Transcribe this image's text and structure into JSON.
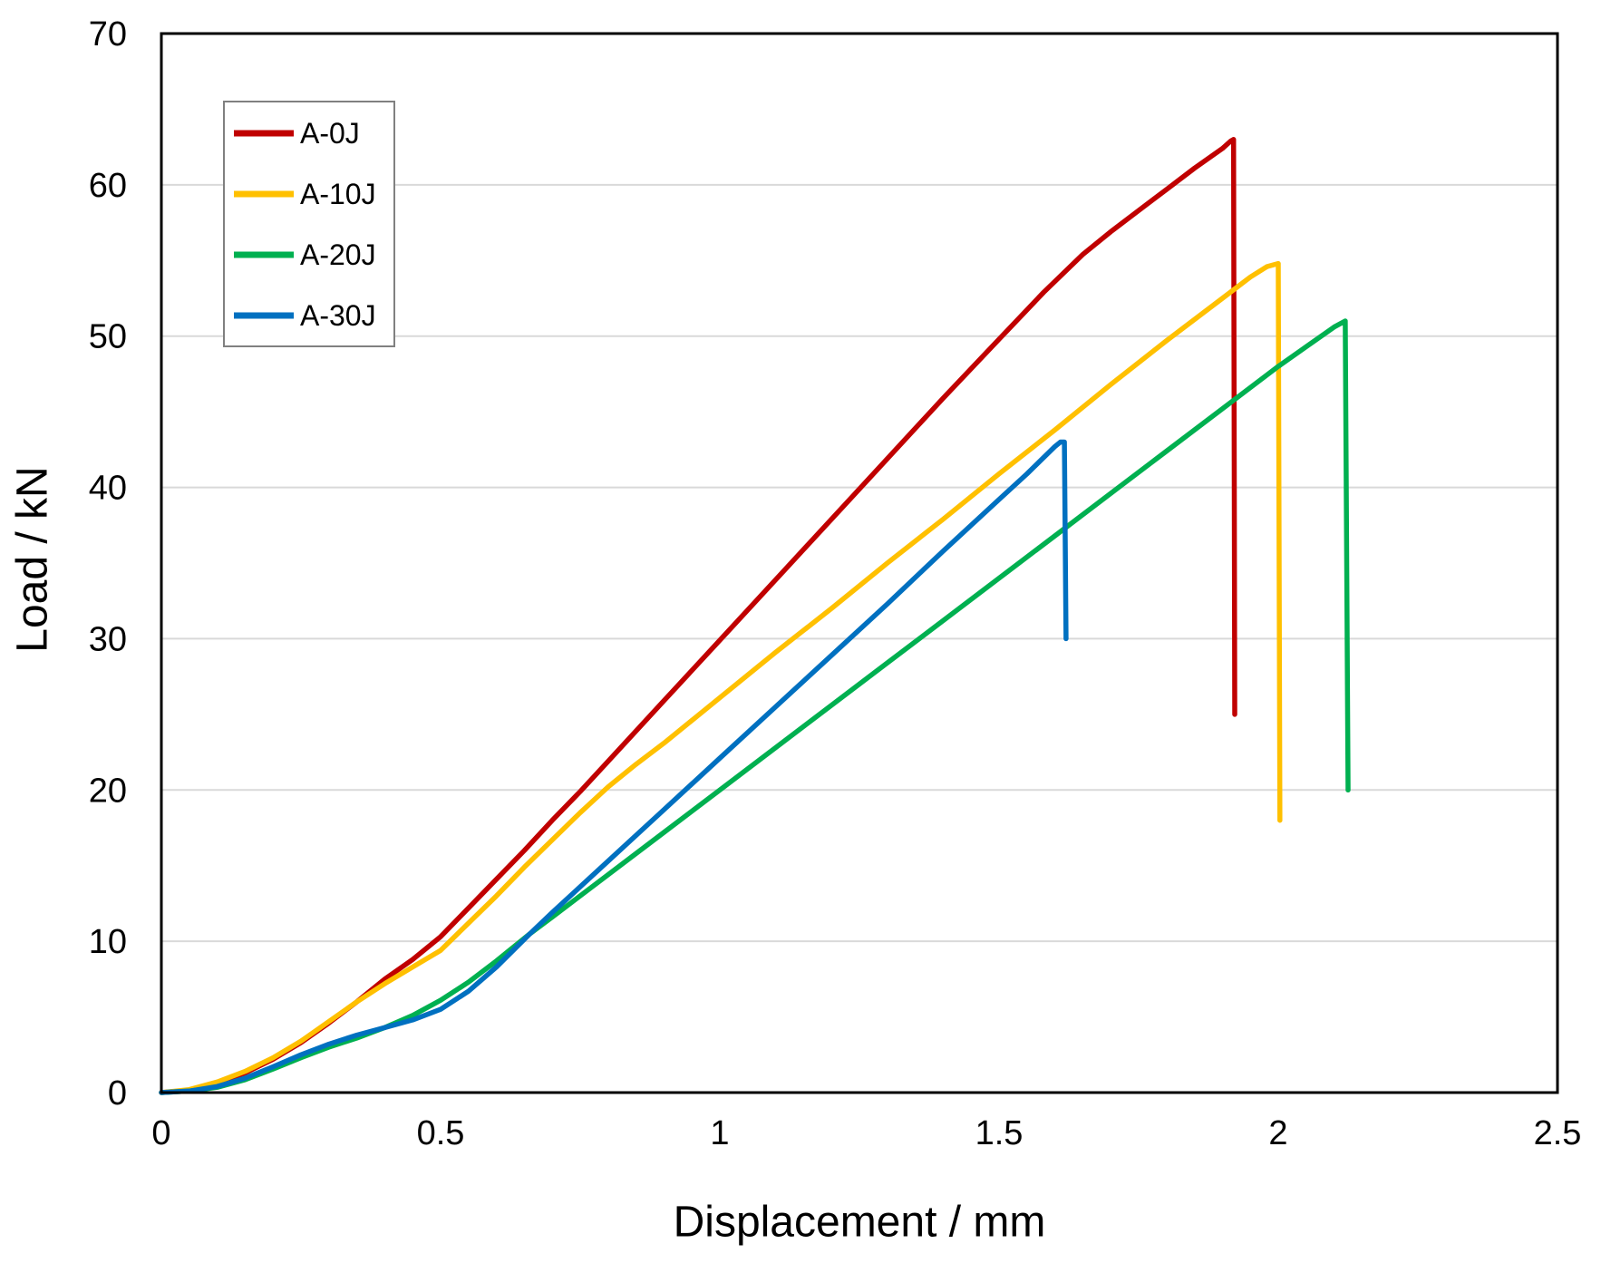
{
  "chart_data": {
    "type": "line",
    "title": "",
    "xlabel": "Displacement / mm",
    "ylabel": "Load / kN",
    "xlim": [
      0,
      2.5
    ],
    "ylim": [
      0,
      70
    ],
    "xticks": {
      "values": [
        0,
        0.5,
        1,
        1.5,
        2,
        2.5
      ],
      "labels": [
        "0",
        "0.5",
        "1",
        "1.5",
        "2",
        "2.5"
      ]
    },
    "yticks": {
      "values": [
        0,
        10,
        20,
        30,
        40,
        50,
        60,
        70
      ],
      "labels": [
        "0",
        "10",
        "20",
        "30",
        "40",
        "50",
        "60",
        "70"
      ]
    },
    "grid": "horizontal-only",
    "plot_border": true,
    "legend": {
      "position": "top-left-inside",
      "entries": [
        "A-0J",
        "A-10J",
        "A-20J",
        "A-30J"
      ]
    },
    "series": [
      {
        "name": "A-0J",
        "color": "#C00000",
        "points": [
          [
            0,
            0
          ],
          [
            0.05,
            0.15
          ],
          [
            0.1,
            0.6
          ],
          [
            0.15,
            1.3
          ],
          [
            0.2,
            2.2
          ],
          [
            0.25,
            3.3
          ],
          [
            0.3,
            4.6
          ],
          [
            0.35,
            6.0
          ],
          [
            0.4,
            7.5
          ],
          [
            0.45,
            8.8
          ],
          [
            0.5,
            10.3
          ],
          [
            0.55,
            12.2
          ],
          [
            0.6,
            14.1
          ],
          [
            0.65,
            16.0
          ],
          [
            0.7,
            18.0
          ],
          [
            0.75,
            19.9
          ],
          [
            0.8,
            21.9
          ],
          [
            0.9,
            25.9
          ],
          [
            1.0,
            29.9
          ],
          [
            1.1,
            33.9
          ],
          [
            1.2,
            37.9
          ],
          [
            1.3,
            41.9
          ],
          [
            1.4,
            45.9
          ],
          [
            1.5,
            49.8
          ],
          [
            1.58,
            52.9
          ],
          [
            1.65,
            55.4
          ],
          [
            1.7,
            56.9
          ],
          [
            1.75,
            58.3
          ],
          [
            1.8,
            59.7
          ],
          [
            1.85,
            61.1
          ],
          [
            1.9,
            62.4
          ],
          [
            1.915,
            62.9
          ],
          [
            1.92,
            63.0
          ],
          [
            1.922,
            25.0
          ]
        ]
      },
      {
        "name": "A-10J",
        "color": "#FFC000",
        "points": [
          [
            0,
            0
          ],
          [
            0.05,
            0.2
          ],
          [
            0.1,
            0.7
          ],
          [
            0.15,
            1.4
          ],
          [
            0.2,
            2.3
          ],
          [
            0.25,
            3.4
          ],
          [
            0.3,
            4.7
          ],
          [
            0.35,
            6.0
          ],
          [
            0.4,
            7.2
          ],
          [
            0.45,
            8.3
          ],
          [
            0.5,
            9.4
          ],
          [
            0.55,
            11.2
          ],
          [
            0.6,
            13.0
          ],
          [
            0.65,
            14.9
          ],
          [
            0.7,
            16.7
          ],
          [
            0.75,
            18.5
          ],
          [
            0.8,
            20.2
          ],
          [
            0.85,
            21.7
          ],
          [
            0.9,
            23.1
          ],
          [
            1.0,
            26.1
          ],
          [
            1.1,
            29.1
          ],
          [
            1.2,
            32.0
          ],
          [
            1.3,
            35.0
          ],
          [
            1.4,
            37.9
          ],
          [
            1.5,
            40.9
          ],
          [
            1.6,
            43.8
          ],
          [
            1.7,
            46.8
          ],
          [
            1.8,
            49.7
          ],
          [
            1.9,
            52.5
          ],
          [
            1.95,
            53.9
          ],
          [
            1.98,
            54.6
          ],
          [
            2.0,
            54.8
          ],
          [
            2.003,
            18.0
          ]
        ]
      },
      {
        "name": "A-20J",
        "color": "#00B050",
        "points": [
          [
            0,
            0
          ],
          [
            0.05,
            0.1
          ],
          [
            0.1,
            0.35
          ],
          [
            0.15,
            0.85
          ],
          [
            0.2,
            1.55
          ],
          [
            0.25,
            2.3
          ],
          [
            0.3,
            3.0
          ],
          [
            0.35,
            3.6
          ],
          [
            0.4,
            4.3
          ],
          [
            0.45,
            5.1
          ],
          [
            0.5,
            6.1
          ],
          [
            0.55,
            7.3
          ],
          [
            0.6,
            8.7
          ],
          [
            0.66,
            10.5
          ],
          [
            0.7,
            11.6
          ],
          [
            0.8,
            14.4
          ],
          [
            0.9,
            17.2
          ],
          [
            1.0,
            20.0
          ],
          [
            1.1,
            22.8
          ],
          [
            1.2,
            25.6
          ],
          [
            1.3,
            28.4
          ],
          [
            1.4,
            31.2
          ],
          [
            1.5,
            34.0
          ],
          [
            1.6,
            36.8
          ],
          [
            1.7,
            39.6
          ],
          [
            1.8,
            42.4
          ],
          [
            1.9,
            45.2
          ],
          [
            2.0,
            48.0
          ],
          [
            2.05,
            49.3
          ],
          [
            2.1,
            50.6
          ],
          [
            2.12,
            51.0
          ],
          [
            2.125,
            20.0
          ]
        ]
      },
      {
        "name": "A-30J",
        "color": "#0070C0",
        "points": [
          [
            0,
            0
          ],
          [
            0.05,
            0.1
          ],
          [
            0.1,
            0.4
          ],
          [
            0.15,
            0.95
          ],
          [
            0.2,
            1.7
          ],
          [
            0.25,
            2.5
          ],
          [
            0.3,
            3.2
          ],
          [
            0.35,
            3.8
          ],
          [
            0.4,
            4.3
          ],
          [
            0.45,
            4.8
          ],
          [
            0.5,
            5.5
          ],
          [
            0.55,
            6.7
          ],
          [
            0.6,
            8.3
          ],
          [
            0.66,
            10.5
          ],
          [
            0.7,
            11.9
          ],
          [
            0.8,
            15.3
          ],
          [
            0.9,
            18.7
          ],
          [
            1.0,
            22.1
          ],
          [
            1.1,
            25.5
          ],
          [
            1.2,
            28.9
          ],
          [
            1.3,
            32.3
          ],
          [
            1.4,
            35.8
          ],
          [
            1.5,
            39.2
          ],
          [
            1.55,
            40.9
          ],
          [
            1.6,
            42.7
          ],
          [
            1.61,
            43.0
          ],
          [
            1.617,
            43.0
          ],
          [
            1.62,
            30.0
          ]
        ]
      }
    ]
  },
  "colors": {
    "axis": "#000000",
    "gridline": "#D9D9D9",
    "legend_border": "#808080",
    "text": "#000000",
    "background": "#FFFFFF"
  }
}
